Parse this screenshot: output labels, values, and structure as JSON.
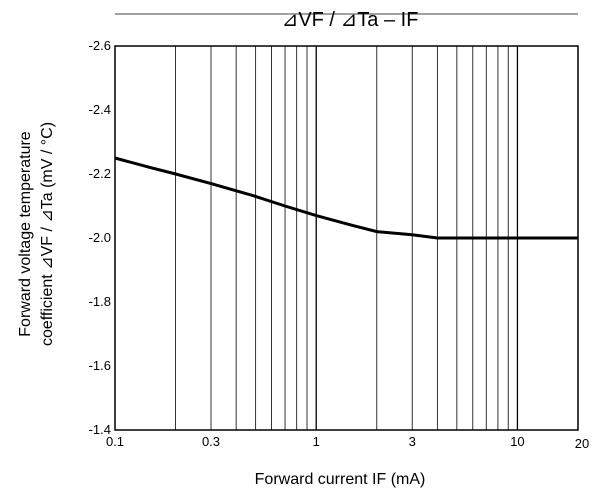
{
  "chart_data": {
    "type": "line",
    "title": "⊿VF / ⊿Ta   –   IF",
    "xlabel": "Forward   current   IF   (mA)",
    "ylabel_line1": "Forward   voltage   temperature",
    "ylabel_line2": "coefficient  ⊿VF / ⊿Ta   (mV / °C)",
    "x_scale": "log",
    "xlim": [
      0.1,
      20
    ],
    "ylim": [
      -1.4,
      -2.6
    ],
    "y_axis_inverted": true,
    "grid": true,
    "x_tick_labels": [
      "0.1",
      "0.3",
      "1",
      "3",
      "10",
      "20"
    ],
    "x_tick_values": [
      0.1,
      0.3,
      1,
      3,
      10,
      20
    ],
    "y_tick_labels": [
      "-2.6",
      "-2.4",
      "-2.2",
      "-2.0",
      "-1.8",
      "-1.6",
      "-1.4"
    ],
    "y_tick_values": [
      -2.6,
      -2.4,
      -2.2,
      -2.0,
      -1.8,
      -1.6,
      -1.4
    ],
    "series": [
      {
        "x": [
          0.1,
          0.15,
          0.2,
          0.3,
          0.5,
          0.7,
          1,
          1.5,
          2,
          3,
          4,
          5,
          7,
          10,
          15,
          20
        ],
        "y": [
          -2.25,
          -2.22,
          -2.2,
          -2.17,
          -2.13,
          -2.1,
          -2.07,
          -2.04,
          -2.02,
          -2.01,
          -2.0,
          -2.0,
          -2.0,
          -2.0,
          -2.0,
          -2.0
        ]
      }
    ]
  }
}
